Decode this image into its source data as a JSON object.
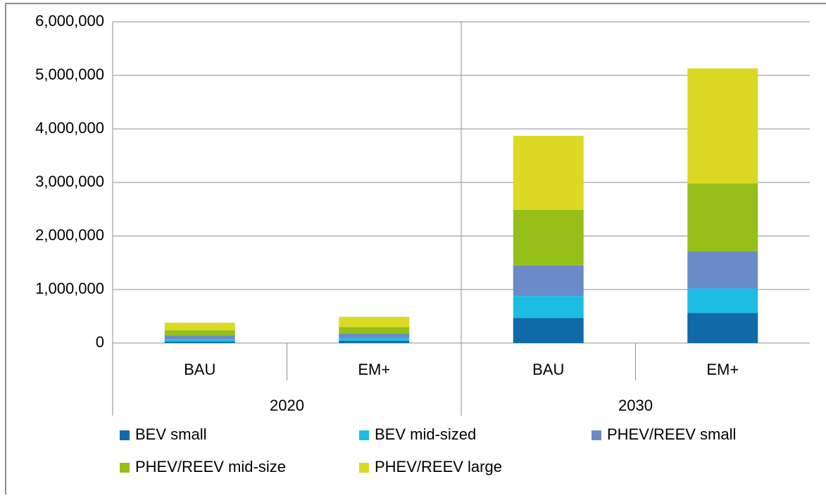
{
  "chart_data": {
    "type": "stacked_bar",
    "categories": [
      "BAU",
      "EM+",
      "BAU",
      "EM+"
    ],
    "groups": [
      "2020",
      "2030"
    ],
    "series": [
      {
        "name": "BEV small",
        "color": "#0f6aa6",
        "values": [
          30000,
          40000,
          470000,
          560000
        ]
      },
      {
        "name": "BEV mid-sized",
        "color": "#1dbde3",
        "values": [
          40000,
          50000,
          410000,
          460000
        ]
      },
      {
        "name": "PHEV/REEV small",
        "color": "#6a8bc7",
        "values": [
          70000,
          90000,
          570000,
          690000
        ]
      },
      {
        "name": "PHEV/REEV mid-size",
        "color": "#96bf19",
        "values": [
          100000,
          120000,
          1040000,
          1270000
        ]
      },
      {
        "name": "PHEV/REEV large",
        "color": "#dcd924",
        "values": [
          140000,
          190000,
          1380000,
          2150000
        ]
      }
    ],
    "ylim": [
      0,
      6000000
    ],
    "yticks": [
      0,
      {
        "value": 1000000,
        "label": "1,000,000"
      },
      {
        "value": 2000000,
        "label": "2,000,000"
      },
      {
        "value": 3000000,
        "label": "3,000,000"
      },
      {
        "value": 4000000,
        "label": "4,000,000"
      },
      {
        "value": 5000000,
        "label": "5,000,000"
      },
      {
        "value": 6000000,
        "label": "6,000,000"
      }
    ],
    "grid": true
  }
}
